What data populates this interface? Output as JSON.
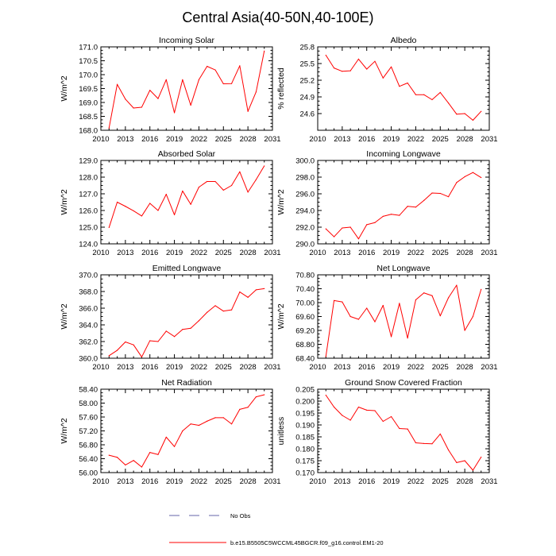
{
  "figure": {
    "title": "Central Asia(40-50N,40-100E)",
    "legend": {
      "obs_label": "No Obs",
      "model_label": "b.e15.B5505C5WCCML45BGCR.f09_g16.control.EM1-20",
      "model_color": "#ff0000",
      "obs_color": "#6666aa"
    }
  },
  "chart_data": [
    {
      "type": "line",
      "title": "Incoming Solar",
      "xlabel": "",
      "ylabel": "W/m^2",
      "xlim": [
        2010,
        2031
      ],
      "ylim": [
        168.0,
        171.0
      ],
      "xticks": [
        "2010",
        "2013",
        "2016",
        "2019",
        "2022",
        "2025",
        "2028",
        "2031"
      ],
      "yticks": [
        "168.0",
        "168.5",
        "169.0",
        "169.5",
        "170.0",
        "170.5",
        "171.0"
      ],
      "x": [
        2011,
        2012,
        2013,
        2014,
        2015,
        2016,
        2017,
        2018,
        2019,
        2020,
        2021,
        2022,
        2023,
        2024,
        2025,
        2026,
        2027,
        2028,
        2029,
        2030
      ],
      "series": [
        {
          "name": "b.e15.B5505C5WCCML45BGCR.f09_g16.control.EM1-20",
          "values": [
            168.08,
            169.65,
            169.12,
            168.8,
            168.83,
            169.44,
            169.14,
            169.82,
            168.63,
            169.82,
            168.9,
            169.82,
            170.3,
            170.17,
            169.67,
            169.68,
            170.32,
            168.68,
            169.38,
            170.85
          ]
        }
      ]
    },
    {
      "type": "line",
      "title": "Albedo",
      "xlabel": "",
      "ylabel": "% reflected",
      "xlim": [
        2010,
        2031
      ],
      "ylim": [
        24.3,
        25.8
      ],
      "xticks": [
        "2010",
        "2013",
        "2016",
        "2019",
        "2022",
        "2025",
        "2028",
        "2031"
      ],
      "yticks": [
        "24.6",
        "24.9",
        "25.2",
        "25.5",
        "25.8"
      ],
      "x": [
        2011,
        2012,
        2013,
        2014,
        2015,
        2016,
        2017,
        2018,
        2019,
        2020,
        2021,
        2022,
        2023,
        2024,
        2025,
        2026,
        2027,
        2028,
        2029,
        2030
      ],
      "series": [
        {
          "name": "b.e15.B5505C5WCCML45BGCR.f09_g16.control.EM1-20",
          "values": [
            25.65,
            25.42,
            25.36,
            25.37,
            25.58,
            25.4,
            25.54,
            25.24,
            25.44,
            25.09,
            25.15,
            24.94,
            24.94,
            24.85,
            24.98,
            24.79,
            24.59,
            24.6,
            24.48,
            24.64
          ]
        }
      ]
    },
    {
      "type": "line",
      "title": "Absorbed Solar",
      "xlabel": "",
      "ylabel": "W/m^2",
      "xlim": [
        2010,
        2031
      ],
      "ylim": [
        124.0,
        129.0
      ],
      "xticks": [
        "2010",
        "2013",
        "2016",
        "2019",
        "2022",
        "2025",
        "2028",
        "2031"
      ],
      "yticks": [
        "124.0",
        "125.0",
        "126.0",
        "127.0",
        "128.0",
        "129.0"
      ],
      "x": [
        2011,
        2012,
        2013,
        2014,
        2015,
        2016,
        2017,
        2018,
        2019,
        2020,
        2021,
        2022,
        2023,
        2024,
        2025,
        2026,
        2027,
        2028,
        2029,
        2030
      ],
      "series": [
        {
          "name": "b.e15.B5505C5WCCML45BGCR.f09_g16.control.EM1-20",
          "values": [
            124.98,
            126.5,
            126.25,
            125.98,
            125.67,
            126.43,
            126.0,
            126.97,
            125.74,
            127.17,
            126.37,
            127.4,
            127.74,
            127.74,
            127.22,
            127.5,
            128.32,
            127.1,
            127.85,
            128.67
          ]
        }
      ]
    },
    {
      "type": "line",
      "title": "Incoming Longwave",
      "xlabel": "",
      "ylabel": "W/m^2",
      "xlim": [
        2010,
        2031
      ],
      "ylim": [
        290.0,
        300.0
      ],
      "xticks": [
        "2010",
        "2013",
        "2016",
        "2019",
        "2022",
        "2025",
        "2028",
        "2031"
      ],
      "yticks": [
        "290.0",
        "292.0",
        "294.0",
        "296.0",
        "298.0",
        "300.0"
      ],
      "x": [
        2011,
        2012,
        2013,
        2014,
        2015,
        2016,
        2017,
        2018,
        2019,
        2020,
        2021,
        2022,
        2023,
        2024,
        2025,
        2026,
        2027,
        2028,
        2029,
        2030
      ],
      "series": [
        {
          "name": "b.e15.B5505C5WCCML45BGCR.f09_g16.control.EM1-20",
          "values": [
            291.8,
            290.85,
            291.9,
            292.0,
            290.6,
            292.3,
            292.55,
            293.3,
            293.55,
            293.42,
            294.5,
            294.4,
            295.2,
            296.1,
            296.05,
            295.65,
            297.35,
            298.05,
            298.55,
            297.95
          ]
        }
      ]
    },
    {
      "type": "line",
      "title": "Emitted Longwave",
      "xlabel": "",
      "ylabel": "W/m^2",
      "xlim": [
        2010,
        2031
      ],
      "ylim": [
        360.0,
        370.0
      ],
      "xticks": [
        "2010",
        "2013",
        "2016",
        "2019",
        "2022",
        "2025",
        "2028",
        "2031"
      ],
      "yticks": [
        "360.0",
        "362.0",
        "364.0",
        "366.0",
        "368.0",
        "370.0"
      ],
      "x": [
        2011,
        2012,
        2013,
        2014,
        2015,
        2016,
        2017,
        2018,
        2019,
        2020,
        2021,
        2022,
        2023,
        2024,
        2025,
        2026,
        2027,
        2028,
        2029,
        2030
      ],
      "series": [
        {
          "name": "b.e15.B5505C5WCCML45BGCR.f09_g16.control.EM1-20",
          "values": [
            360.3,
            360.95,
            361.95,
            361.6,
            360.15,
            362.1,
            362.0,
            363.25,
            362.6,
            363.45,
            363.6,
            364.5,
            365.5,
            366.3,
            365.65,
            365.8,
            367.95,
            367.3,
            368.2,
            368.35
          ]
        }
      ]
    },
    {
      "type": "line",
      "title": "Net Longwave",
      "xlabel": "",
      "ylabel": "W/m^2",
      "xlim": [
        2010,
        2031
      ],
      "ylim": [
        68.4,
        70.8
      ],
      "xticks": [
        "2010",
        "2013",
        "2016",
        "2019",
        "2022",
        "2025",
        "2028",
        "2031"
      ],
      "yticks": [
        "68.40",
        "68.80",
        "69.20",
        "69.60",
        "70.00",
        "70.40",
        "70.80"
      ],
      "x": [
        2011,
        2012,
        2013,
        2014,
        2015,
        2016,
        2017,
        2018,
        2019,
        2020,
        2021,
        2022,
        2023,
        2024,
        2025,
        2026,
        2027,
        2028,
        2029,
        2030
      ],
      "series": [
        {
          "name": "b.e15.B5505C5WCCML45BGCR.f09_g16.control.EM1-20",
          "values": [
            68.45,
            70.06,
            70.02,
            69.6,
            69.52,
            69.84,
            69.45,
            69.92,
            69.02,
            69.98,
            68.98,
            70.08,
            70.28,
            70.2,
            69.62,
            70.14,
            70.5,
            69.2,
            69.6,
            70.38
          ]
        }
      ]
    },
    {
      "type": "line",
      "title": "Net Radiation",
      "xlabel": "",
      "ylabel": "W/m^2",
      "xlim": [
        2010,
        2031
      ],
      "ylim": [
        56.0,
        58.4
      ],
      "xticks": [
        "2010",
        "2013",
        "2016",
        "2019",
        "2022",
        "2025",
        "2028",
        "2031"
      ],
      "yticks": [
        "56.00",
        "56.40",
        "56.80",
        "57.20",
        "57.60",
        "58.00",
        "58.40"
      ],
      "x": [
        2011,
        2012,
        2013,
        2014,
        2015,
        2016,
        2017,
        2018,
        2019,
        2020,
        2021,
        2022,
        2023,
        2024,
        2025,
        2026,
        2027,
        2028,
        2029,
        2030
      ],
      "series": [
        {
          "name": "b.e15.B5505C5WCCML45BGCR.f09_g16.control.EM1-20",
          "values": [
            56.5,
            56.44,
            56.22,
            56.35,
            56.16,
            56.58,
            56.52,
            57.02,
            56.75,
            57.2,
            57.4,
            57.36,
            57.48,
            57.58,
            57.58,
            57.4,
            57.82,
            57.88,
            58.18,
            58.24
          ]
        }
      ]
    },
    {
      "type": "line",
      "title": "Ground Snow Covered Fraction",
      "xlabel": "",
      "ylabel": "unitless",
      "xlim": [
        2010,
        2031
      ],
      "ylim": [
        0.17,
        0.205
      ],
      "xticks": [
        "2010",
        "2013",
        "2016",
        "2019",
        "2022",
        "2025",
        "2028",
        "2031"
      ],
      "yticks": [
        "0.170",
        "0.175",
        "0.180",
        "0.185",
        "0.190",
        "0.195",
        "0.200",
        "0.205"
      ],
      "x": [
        2011,
        2012,
        2013,
        2014,
        2015,
        2016,
        2017,
        2018,
        2019,
        2020,
        2021,
        2022,
        2023,
        2024,
        2025,
        2026,
        2027,
        2028,
        2029,
        2030
      ],
      "series": [
        {
          "name": "b.e15.B5505C5WCCML45BGCR.f09_g16.control.EM1-20",
          "values": [
            0.2025,
            0.1975,
            0.194,
            0.192,
            0.1975,
            0.1962,
            0.196,
            0.1915,
            0.1935,
            0.1885,
            0.1883,
            0.1825,
            0.1822,
            0.1821,
            0.1862,
            0.1795,
            0.1742,
            0.175,
            0.171,
            0.1765
          ]
        }
      ]
    }
  ]
}
